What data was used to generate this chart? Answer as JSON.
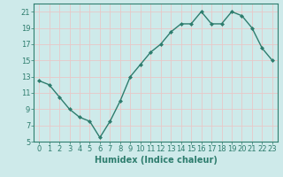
{
  "x": [
    0,
    1,
    2,
    3,
    4,
    5,
    6,
    7,
    8,
    9,
    10,
    11,
    12,
    13,
    14,
    15,
    16,
    17,
    18,
    19,
    20,
    21,
    22,
    23
  ],
  "y": [
    12.5,
    12.0,
    10.5,
    9.0,
    8.0,
    7.5,
    5.5,
    7.5,
    10.0,
    13.0,
    14.5,
    16.0,
    17.0,
    18.5,
    19.5,
    19.5,
    21.0,
    19.5,
    19.5,
    21.0,
    20.5,
    19.0,
    16.5,
    15.0
  ],
  "line_color": "#2e7d6e",
  "marker": "D",
  "marker_size": 2,
  "line_width": 1.0,
  "bg_color": "#ceeaea",
  "grid_color": "#e8c8c8",
  "xlabel": "Humidex (Indice chaleur)",
  "xlabel_fontsize": 7,
  "xlabel_color": "#2e7d6e",
  "tick_color": "#2e7d6e",
  "ylim": [
    5,
    22
  ],
  "xlim": [
    -0.5,
    23.5
  ],
  "yticks": [
    5,
    7,
    9,
    11,
    13,
    15,
    17,
    19,
    21
  ],
  "xticks": [
    0,
    1,
    2,
    3,
    4,
    5,
    6,
    7,
    8,
    9,
    10,
    11,
    12,
    13,
    14,
    15,
    16,
    17,
    18,
    19,
    20,
    21,
    22,
    23
  ],
  "tick_fontsize": 6
}
